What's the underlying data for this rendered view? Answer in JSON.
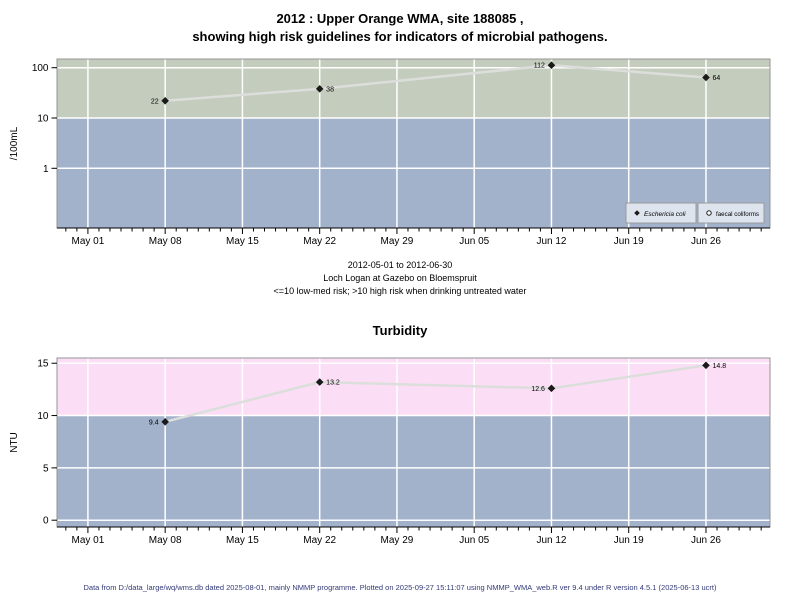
{
  "title": {
    "line1": "2012 : Upper Orange WMA, site 188085 ,",
    "line2": "showing high risk guidelines for indicators of microbial pathogens."
  },
  "subtitle": {
    "date_range": "2012-05-01 to 2012-06-30",
    "site": "Loch Logan at Gazebo on Bloemspruit",
    "risk_note": "<=10 low-med risk; >10 high risk when drinking untreated water"
  },
  "footer": "Data from D:/data_large/wq/wms.db dated 2025-08-01, mainly NMMP programme. Plotted on 2025-09-27 15:11:07 using NMMP_WMA_web.R ver 9.4 under R version 4.5.1 (2025-06-13 ucrt)",
  "colors": {
    "high_risk_microbial_bg": "#c4ccbd",
    "low_med_risk_bg": "#a3b2cb",
    "high_risk_turbidity_bg": "#fbdef6",
    "grid": "#ffffff",
    "series_line": "#dcdedb",
    "point": "#1a1a1a",
    "point_label": "#333333",
    "legend_fill": "#dde4ee",
    "legend_border": "#999999",
    "axis": "#000000",
    "panel_border": "#949494",
    "footer_text": "#333a78"
  },
  "x_axis": {
    "tick_labels": [
      "May 01",
      "May 08",
      "May 15",
      "May 22",
      "May 29",
      "Jun 05",
      "Jun 12",
      "Jun 19",
      "Jun 26"
    ],
    "tick_days": [
      0,
      7,
      14,
      21,
      28,
      35,
      42,
      49,
      56
    ],
    "minor_day_range": [
      -2,
      61
    ],
    "xlim_days": [
      -2.8,
      61.8
    ]
  },
  "chart_data": [
    {
      "type": "line",
      "title": "",
      "ylabel": "/100mL",
      "yscale": "log",
      "ylim": [
        0.065,
        149
      ],
      "yticks": [
        1,
        10,
        100
      ],
      "ytick_labels": [
        "1",
        "10",
        "100"
      ],
      "grid": true,
      "risk_threshold": 10,
      "regions": [
        {
          "from": 10,
          "to": 149,
          "color": "#c4ccbd",
          "meaning": "high risk"
        },
        {
          "from": 0.065,
          "to": 10,
          "color": "#a3b2cb",
          "meaning": "low-med risk"
        }
      ],
      "series": [
        {
          "name": "Eschericia coli",
          "marker": "filled-diamond",
          "x_days": [
            7,
            21,
            42,
            56
          ],
          "x_dates": [
            "2012-05-08",
            "2012-05-22",
            "2012-06-12",
            "2012-06-26"
          ],
          "values": [
            22,
            38,
            112,
            64
          ],
          "point_labels": [
            "22",
            "38",
            "112",
            "64"
          ],
          "label_side": [
            "left",
            "right",
            "left",
            "right"
          ]
        }
      ],
      "legend": {
        "position": "bottom-right",
        "entries": [
          {
            "label": "Eschericia coli",
            "marker": "filled-diamond",
            "italic": true
          },
          {
            "label": "faecal coliforms",
            "marker": "open-circle",
            "italic": false
          }
        ]
      }
    },
    {
      "type": "line",
      "title": "Turbidity",
      "ylabel": "NTU",
      "yscale": "linear",
      "ylim": [
        -0.65,
        15.5
      ],
      "yticks": [
        0,
        5,
        10,
        15
      ],
      "ytick_labels": [
        "0",
        "5",
        "10",
        "15"
      ],
      "grid": true,
      "risk_threshold": 10,
      "regions": [
        {
          "from": 10,
          "to": 15.5,
          "color": "#fbdef6",
          "meaning": "high risk"
        },
        {
          "from": -0.65,
          "to": 10,
          "color": "#a3b2cb",
          "meaning": "low-med risk"
        }
      ],
      "series": [
        {
          "name": "Turbidity",
          "marker": "filled-diamond",
          "x_days": [
            7,
            21,
            42,
            56
          ],
          "x_dates": [
            "2012-05-08",
            "2012-05-22",
            "2012-06-12",
            "2012-06-26"
          ],
          "values": [
            9.4,
            13.2,
            12.6,
            14.8
          ],
          "point_labels": [
            "9.4",
            "13.2",
            "12.6",
            "14.8"
          ],
          "label_side": [
            "left",
            "right",
            "left",
            "right"
          ]
        }
      ]
    }
  ]
}
